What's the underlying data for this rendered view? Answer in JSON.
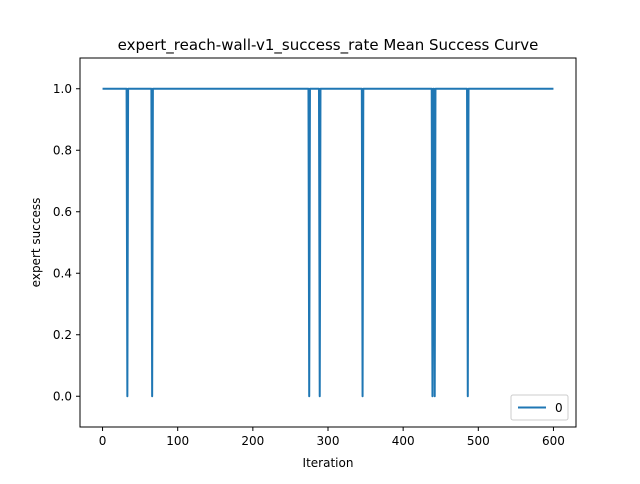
{
  "chart_data": {
    "type": "line",
    "title": "expert_reach-wall-v1_success_rate Mean Success Curve",
    "xlabel": "Iteration",
    "ylabel": "expert success",
    "xlim": [
      -30,
      630
    ],
    "ylim": [
      -0.1,
      1.1
    ],
    "xticks": [
      0,
      100,
      200,
      300,
      400,
      500,
      600
    ],
    "yticks": [
      0.0,
      0.2,
      0.4,
      0.6,
      0.8,
      1.0
    ],
    "xtick_labels": [
      "0",
      "100",
      "200",
      "300",
      "400",
      "500",
      "600"
    ],
    "ytick_labels": [
      "0.0",
      "0.2",
      "0.4",
      "0.6",
      "0.8",
      "1.0"
    ],
    "grid": false,
    "legend_position": "lower-right",
    "series": [
      {
        "name": "0",
        "color": "#1f77b4",
        "x": [
          0,
          32,
          33,
          34,
          65,
          66,
          67,
          274,
          275,
          276,
          288,
          289,
          290,
          345,
          346,
          347,
          438,
          439,
          440,
          441,
          442,
          443,
          485,
          486,
          487,
          600
        ],
        "y": [
          1,
          1,
          0,
          1,
          1,
          0,
          1,
          1,
          0,
          1,
          1,
          0,
          1,
          1,
          0,
          1,
          1,
          0,
          1,
          1,
          0,
          1,
          1,
          0,
          1,
          1
        ]
      }
    ]
  }
}
